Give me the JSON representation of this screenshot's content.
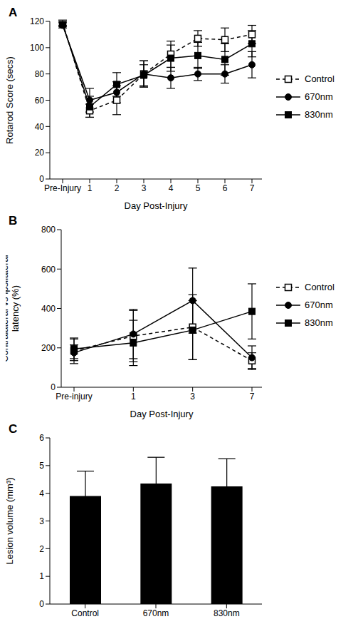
{
  "chart_data": [
    {
      "type": "line",
      "title": "A",
      "x_label": "Day Post-Injury",
      "y_label": "Rotarod Score (secs)",
      "categories": [
        "Pre-Injury",
        "1",
        "2",
        "3",
        "4",
        "5",
        "6",
        "7"
      ],
      "ylim": [
        0,
        120
      ],
      "yticks": [
        0,
        20,
        40,
        60,
        80,
        100,
        120
      ],
      "legend": "right",
      "series": [
        {
          "name": "Control",
          "color": "#000000",
          "marker": "square-open",
          "line_style": "dashed",
          "values": [
            119,
            52,
            60,
            80,
            95,
            107,
            106,
            110
          ],
          "errors": [
            2,
            5,
            11,
            10,
            10,
            6,
            9,
            7
          ]
        },
        {
          "name": "670nm",
          "color": "#000000",
          "marker": "circle",
          "line_style": "solid",
          "values": [
            117,
            60,
            66,
            80,
            77,
            80,
            80,
            87
          ],
          "errors": [
            2,
            9,
            8,
            10,
            8,
            5,
            7,
            10
          ]
        },
        {
          "name": "830nm",
          "color": "#000000",
          "marker": "square",
          "line_style": "solid",
          "values": [
            118,
            55,
            72,
            79,
            92,
            94,
            91,
            103
          ],
          "errors": [
            2,
            8,
            9,
            8,
            10,
            10,
            12,
            10
          ]
        }
      ]
    },
    {
      "type": "line",
      "title": "B",
      "x_label": "Day Post-Injury",
      "y_label": "Contralateral vs Ipsilateral\nlatency (%)",
      "categories": [
        "Pre-injury",
        "1",
        "3",
        "7"
      ],
      "ylim": [
        0,
        800
      ],
      "yticks": [
        0,
        200,
        400,
        600,
        800
      ],
      "legend": "right",
      "series": [
        {
          "name": "Control",
          "color": "#000000",
          "marker": "square-open",
          "line_style": "dashed",
          "values": [
            185,
            260,
            305,
            135
          ],
          "errors": [
            65,
            130,
            165,
            40
          ]
        },
        {
          "name": "670nm",
          "color": "#000000",
          "marker": "circle",
          "line_style": "solid",
          "values": [
            175,
            270,
            440,
            150
          ],
          "errors": [
            40,
            125,
            165,
            60
          ]
        },
        {
          "name": "830nm",
          "color": "#000000",
          "marker": "square",
          "line_style": "solid",
          "values": [
            195,
            225,
            290,
            385
          ],
          "errors": [
            50,
            115,
            150,
            140
          ]
        }
      ]
    },
    {
      "type": "bar",
      "title": "C",
      "y_label": "Lesion volume (mm³)",
      "categories": [
        "Control",
        "670nm",
        "830nm"
      ],
      "values": [
        3.9,
        4.35,
        4.25
      ],
      "errors": [
        0.9,
        0.95,
        1.0
      ],
      "color": "#000000",
      "ylim": [
        0,
        6
      ],
      "yticks": [
        0,
        1,
        2,
        3,
        4,
        5,
        6
      ]
    }
  ]
}
